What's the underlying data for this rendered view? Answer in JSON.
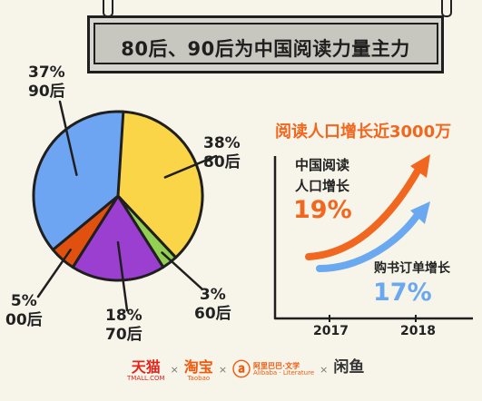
{
  "title": "80后、90后为中国阅读力量主力",
  "chart_data": [
    {
      "type": "pie",
      "slices": [
        {
          "label": "80后",
          "percent": 38,
          "color": "#fbd548"
        },
        {
          "label": "60后",
          "percent": 3,
          "color": "#92cf52"
        },
        {
          "label": "70后",
          "percent": 18,
          "color": "#9a3fd0"
        },
        {
          "label": "00后",
          "percent": 5,
          "color": "#e0510f"
        },
        {
          "label": "90后",
          "percent": 37,
          "color": "#6ea5f2"
        }
      ]
    },
    {
      "type": "line",
      "title": "阅读人口增长近3000万",
      "x": [
        "2017",
        "2018"
      ],
      "series": [
        {
          "name": "中国阅读人口增长",
          "value_label": "19%",
          "color": "#f2671f"
        },
        {
          "name": "购书订单增长",
          "value_label": "17%",
          "color": "#6aa8ef"
        }
      ]
    }
  ],
  "labels": {
    "s80": {
      "pct": "38%",
      "gen": "80后"
    },
    "s60": {
      "pct": "3%",
      "gen": "60后"
    },
    "s70": {
      "pct": "18%",
      "gen": "70后"
    },
    "s00": {
      "pct": "5%",
      "gen": "00后"
    },
    "s90": {
      "pct": "37%",
      "gen": "90后"
    }
  },
  "trend": {
    "headline": "阅读人口增长近3000万",
    "read_line1": "中国阅读",
    "read_line2": "人口增长",
    "read_value": "19%",
    "buy_label": "购书订单增长",
    "buy_value": "17%",
    "year1": "2017",
    "year2": "2018"
  },
  "footer": {
    "tmall": "天猫",
    "tmall_sub": "TMALL.COM",
    "taobao": "淘宝",
    "taobao_sub": "Taobao",
    "alibaba": "阿里巴巴·文学",
    "alibaba_sub": "Alibaba · Literature",
    "xianyu": "闲鱼",
    "sep": "×"
  }
}
